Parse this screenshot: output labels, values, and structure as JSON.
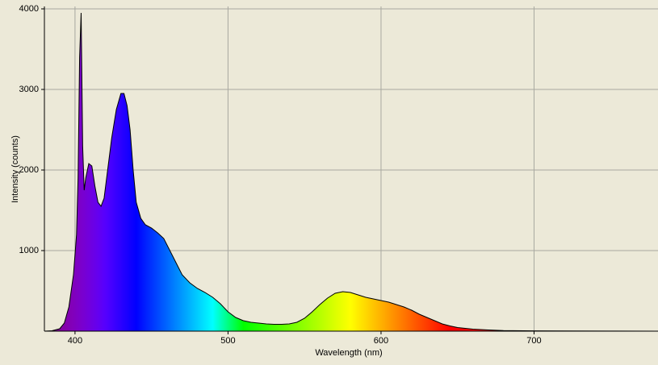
{
  "chart_data": {
    "type": "area",
    "x_label": "Wavelength (nm)",
    "y_label": "Intensity (counts)",
    "x": [
      380,
      385,
      390,
      393,
      396,
      399,
      401,
      402,
      403,
      404,
      405,
      406,
      407,
      409,
      411,
      413,
      415,
      417,
      419,
      421,
      424,
      427,
      430,
      432,
      434,
      436,
      438,
      440,
      443,
      446,
      450,
      454,
      458,
      462,
      466,
      470,
      475,
      480,
      485,
      490,
      495,
      500,
      505,
      510,
      515,
      520,
      525,
      530,
      535,
      540,
      545,
      550,
      555,
      560,
      565,
      570,
      575,
      580,
      585,
      590,
      595,
      600,
      605,
      610,
      615,
      620,
      625,
      630,
      635,
      640,
      645,
      650,
      660,
      670,
      680,
      700,
      720,
      750,
      781
    ],
    "values": [
      0,
      5,
      30,
      100,
      300,
      700,
      1200,
      1900,
      3400,
      3950,
      2300,
      1750,
      1900,
      2080,
      2050,
      1800,
      1600,
      1550,
      1650,
      1950,
      2400,
      2750,
      2950,
      2950,
      2800,
      2500,
      2000,
      1600,
      1400,
      1320,
      1280,
      1220,
      1150,
      1000,
      850,
      700,
      600,
      530,
      480,
      420,
      340,
      240,
      170,
      130,
      110,
      100,
      90,
      85,
      85,
      90,
      110,
      160,
      240,
      330,
      410,
      470,
      490,
      480,
      450,
      420,
      400,
      380,
      360,
      330,
      300,
      260,
      210,
      170,
      130,
      90,
      65,
      45,
      25,
      15,
      8,
      4,
      2,
      1,
      0
    ],
    "xlim": [
      380,
      781
    ],
    "ylim": [
      0,
      4030
    ],
    "xticks": [
      400,
      500,
      600,
      700
    ],
    "yticks": [
      1000,
      2000,
      3000,
      4000
    ],
    "grid": true
  }
}
